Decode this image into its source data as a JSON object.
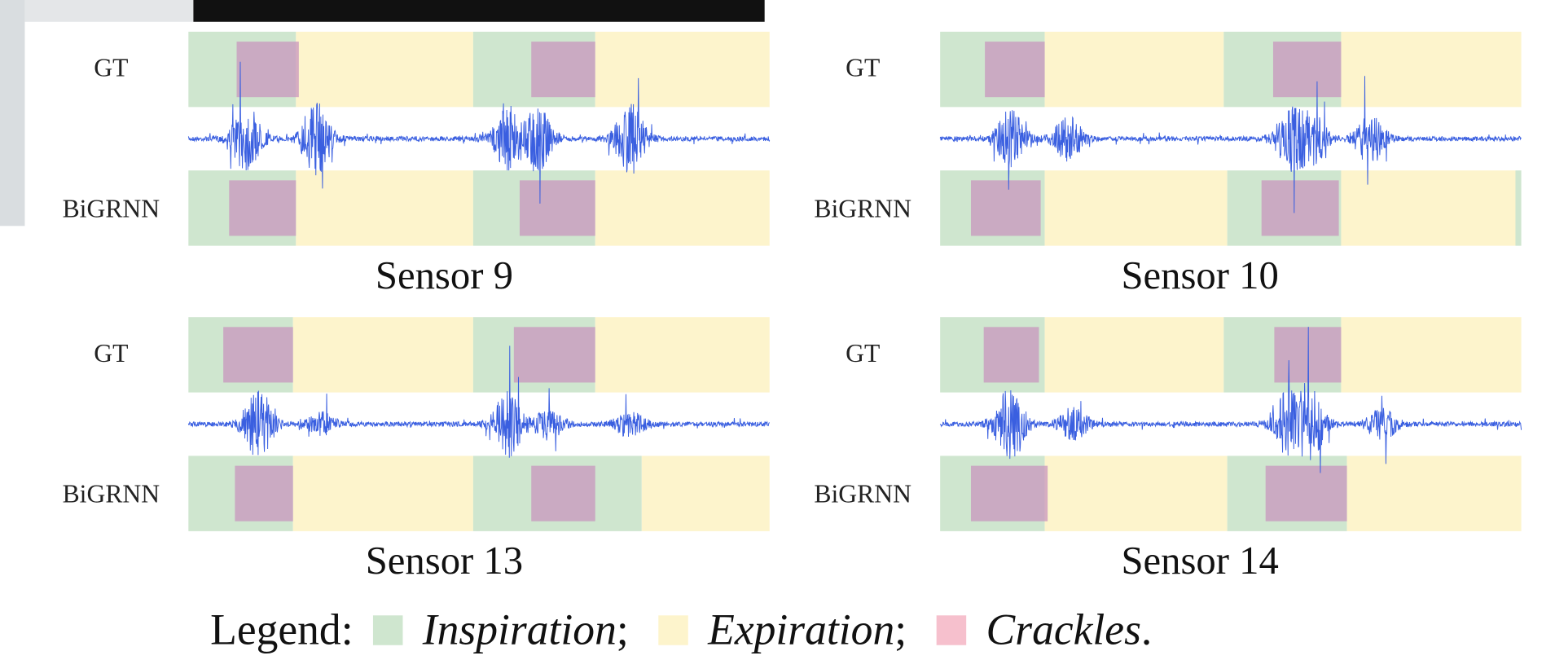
{
  "panels": [
    {
      "title": "Sensor 9",
      "rows": [
        "GT",
        "BiGRNN"
      ]
    },
    {
      "title": "Sensor 10",
      "rows": [
        "GT",
        "BiGRNN"
      ]
    },
    {
      "title": "Sensor 13",
      "rows": [
        "GT",
        "BiGRNN"
      ]
    },
    {
      "title": "Sensor 14",
      "rows": [
        "GT",
        "BiGRNN"
      ]
    }
  ],
  "legend": {
    "label": "Legend:",
    "items": [
      {
        "name": "Inspiration",
        "sep": ";"
      },
      {
        "name": "Expiration",
        "sep": ";"
      },
      {
        "name": "Crackles",
        "sep": "."
      }
    ]
  }
}
